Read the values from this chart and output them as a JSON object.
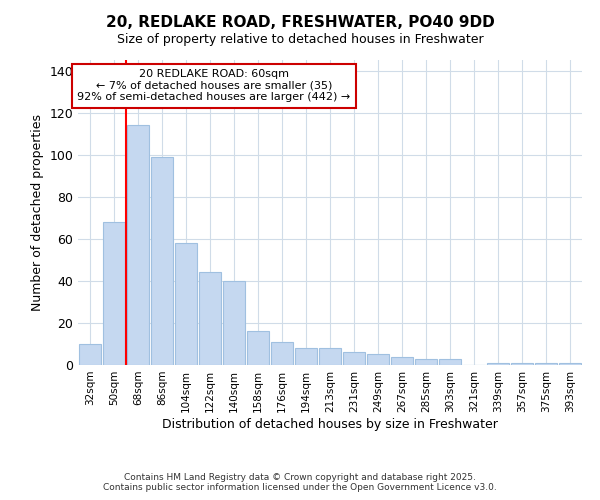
{
  "title1": "20, REDLAKE ROAD, FRESHWATER, PO40 9DD",
  "title2": "Size of property relative to detached houses in Freshwater",
  "xlabel": "Distribution of detached houses by size in Freshwater",
  "ylabel": "Number of detached properties",
  "categories": [
    "32sqm",
    "50sqm",
    "68sqm",
    "86sqm",
    "104sqm",
    "122sqm",
    "140sqm",
    "158sqm",
    "176sqm",
    "194sqm",
    "213sqm",
    "231sqm",
    "249sqm",
    "267sqm",
    "285sqm",
    "303sqm",
    "321sqm",
    "339sqm",
    "357sqm",
    "375sqm",
    "393sqm"
  ],
  "values": [
    10,
    68,
    114,
    99,
    58,
    44,
    40,
    16,
    11,
    8,
    8,
    6,
    5,
    4,
    3,
    3,
    0,
    1,
    1,
    1,
    1
  ],
  "bar_color": "#c5d8f0",
  "bar_edge_color": "#a0c0e0",
  "red_line_x": 1.5,
  "annotation_title": "20 REDLAKE ROAD: 60sqm",
  "annotation_line1": "← 7% of detached houses are smaller (35)",
  "annotation_line2": "92% of semi-detached houses are larger (442) →",
  "annotation_box_color": "#ffffff",
  "annotation_box_edge": "#cc0000",
  "ylim": [
    0,
    145
  ],
  "yticks": [
    0,
    20,
    40,
    60,
    80,
    100,
    120,
    140
  ],
  "footer1": "Contains HM Land Registry data © Crown copyright and database right 2025.",
  "footer2": "Contains public sector information licensed under the Open Government Licence v3.0.",
  "bg_color": "#ffffff",
  "grid_color": "#d0dce8",
  "title1_fontsize": 11,
  "title2_fontsize": 9,
  "ylabel_fontsize": 9,
  "xlabel_fontsize": 9
}
